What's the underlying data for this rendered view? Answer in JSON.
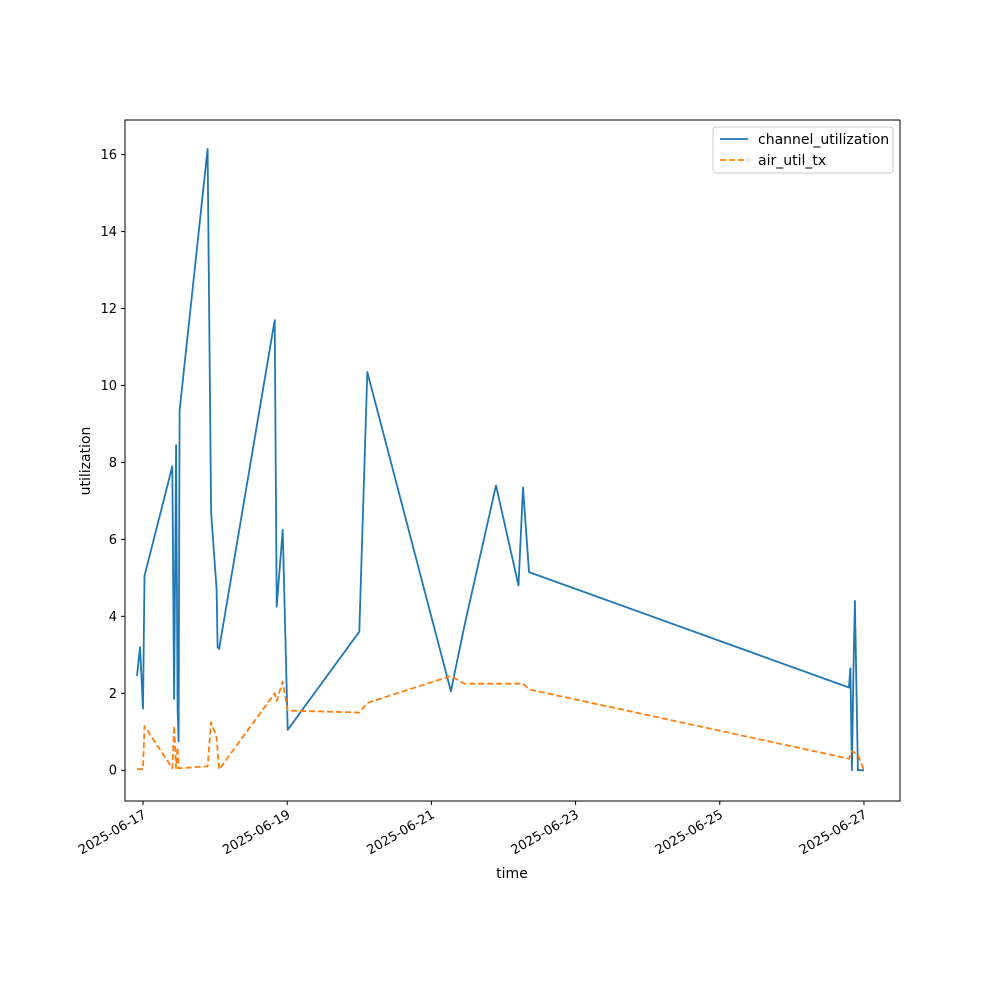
{
  "chart_data": {
    "type": "line",
    "title": "",
    "xlabel": "time",
    "ylabel": "utilization",
    "x_scale": "date",
    "xlim": [
      "2025-06-16T18:00",
      "2025-06-27T12:00"
    ],
    "ylim": [
      -0.8,
      16.9
    ],
    "x_ticks": [
      "2025-06-17",
      "2025-06-19",
      "2025-06-21",
      "2025-06-23",
      "2025-06-25",
      "2025-06-27"
    ],
    "y_ticks": [
      0,
      2,
      4,
      6,
      8,
      10,
      12,
      14,
      16
    ],
    "grid": false,
    "legend_position": "top-right",
    "series": [
      {
        "name": "channel_utilization",
        "color": "#1f77b4",
        "style": "solid",
        "points": [
          {
            "x": "2025-06-16T22:00",
            "y": 2.45
          },
          {
            "x": "2025-06-16T23:00",
            "y": 3.2
          },
          {
            "x": "2025-06-17T00:00",
            "y": 1.6
          },
          {
            "x": "2025-06-17T00:30",
            "y": 5.05
          },
          {
            "x": "2025-06-17T09:45",
            "y": 7.9
          },
          {
            "x": "2025-06-17T10:20",
            "y": 1.85
          },
          {
            "x": "2025-06-17T11:00",
            "y": 8.45
          },
          {
            "x": "2025-06-17T11:30",
            "y": 1.6
          },
          {
            "x": "2025-06-17T11:50",
            "y": 0.75
          },
          {
            "x": "2025-06-17T12:10",
            "y": 9.35
          },
          {
            "x": "2025-06-17T21:30",
            "y": 16.15
          },
          {
            "x": "2025-06-17T22:40",
            "y": 6.7
          },
          {
            "x": "2025-06-18T00:30",
            "y": 4.7
          },
          {
            "x": "2025-06-18T00:50",
            "y": 3.2
          },
          {
            "x": "2025-06-18T01:20",
            "y": 3.15
          },
          {
            "x": "2025-06-18T19:50",
            "y": 11.7
          },
          {
            "x": "2025-06-18T20:30",
            "y": 4.25
          },
          {
            "x": "2025-06-18T22:30",
            "y": 6.25
          },
          {
            "x": "2025-06-19T00:10",
            "y": 1.05
          },
          {
            "x": "2025-06-20T00:00",
            "y": 3.6
          },
          {
            "x": "2025-06-20T02:40",
            "y": 10.35
          },
          {
            "x": "2025-06-21T06:30",
            "y": 2.05
          },
          {
            "x": "2025-06-21T11:00",
            "y": 3.75
          },
          {
            "x": "2025-06-21T21:30",
            "y": 7.4
          },
          {
            "x": "2025-06-22T05:00",
            "y": 4.8
          },
          {
            "x": "2025-06-22T06:30",
            "y": 7.35
          },
          {
            "x": "2025-06-22T08:30",
            "y": 5.15
          },
          {
            "x": "2025-06-26T19:00",
            "y": 2.15
          },
          {
            "x": "2025-06-26T19:30",
            "y": 2.65
          },
          {
            "x": "2025-06-26T20:00",
            "y": 0.0
          },
          {
            "x": "2025-06-26T20:30",
            "y": 2.5
          },
          {
            "x": "2025-06-26T21:00",
            "y": 4.4
          },
          {
            "x": "2025-06-26T22:00",
            "y": 0.0
          },
          {
            "x": "2025-06-27T00:00",
            "y": 0.0
          }
        ]
      },
      {
        "name": "air_util_tx",
        "color": "#ff7f0e",
        "style": "dashed",
        "points": [
          {
            "x": "2025-06-16T22:00",
            "y": 0.03
          },
          {
            "x": "2025-06-16T23:00",
            "y": 0.03
          },
          {
            "x": "2025-06-17T00:00",
            "y": 0.03
          },
          {
            "x": "2025-06-17T00:30",
            "y": 1.15
          },
          {
            "x": "2025-06-17T09:45",
            "y": 0.05
          },
          {
            "x": "2025-06-17T10:20",
            "y": 1.15
          },
          {
            "x": "2025-06-17T11:00",
            "y": 0.05
          },
          {
            "x": "2025-06-17T11:30",
            "y": 0.6
          },
          {
            "x": "2025-06-17T11:50",
            "y": 0.05
          },
          {
            "x": "2025-06-17T21:30",
            "y": 0.1
          },
          {
            "x": "2025-06-17T22:40",
            "y": 1.25
          },
          {
            "x": "2025-06-18T00:30",
            "y": 0.85
          },
          {
            "x": "2025-06-18T01:20",
            "y": 0.02
          },
          {
            "x": "2025-06-18T19:50",
            "y": 2.0
          },
          {
            "x": "2025-06-18T20:30",
            "y": 1.8
          },
          {
            "x": "2025-06-18T22:30",
            "y": 2.3
          },
          {
            "x": "2025-06-19T00:10",
            "y": 1.55
          },
          {
            "x": "2025-06-20T00:00",
            "y": 1.5
          },
          {
            "x": "2025-06-20T02:40",
            "y": 1.75
          },
          {
            "x": "2025-06-21T06:30",
            "y": 2.45
          },
          {
            "x": "2025-06-21T11:00",
            "y": 2.25
          },
          {
            "x": "2025-06-22T06:30",
            "y": 2.25
          },
          {
            "x": "2025-06-22T08:30",
            "y": 2.1
          },
          {
            "x": "2025-06-26T19:00",
            "y": 0.3
          },
          {
            "x": "2025-06-26T20:00",
            "y": 0.5
          },
          {
            "x": "2025-06-26T22:00",
            "y": 0.4
          },
          {
            "x": "2025-06-27T00:00",
            "y": 0.0
          }
        ]
      }
    ]
  }
}
